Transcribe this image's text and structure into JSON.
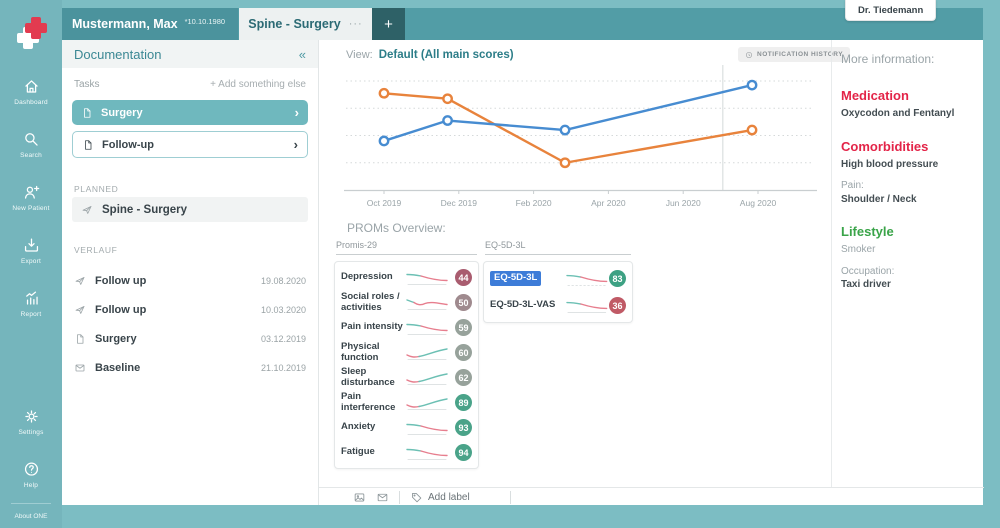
{
  "app": {
    "doctor_badge": "Dr. Tiedemann",
    "about_label": "About ONE"
  },
  "glyphs": {
    "chevron_right": "›",
    "collapse": "«",
    "dots": "···",
    "plus": "+"
  },
  "sidebar": {
    "items": [
      {
        "label": "Dashboard",
        "icon": "home"
      },
      {
        "label": "Search",
        "icon": "search"
      },
      {
        "label": "New Patient",
        "icon": "person-plus"
      },
      {
        "label": "Export",
        "icon": "export"
      },
      {
        "label": "Report",
        "icon": "report"
      }
    ],
    "bottom_items": [
      {
        "label": "Settings",
        "icon": "gear"
      },
      {
        "label": "Help",
        "icon": "help"
      }
    ]
  },
  "header": {
    "patient_name": "Mustermann, Max",
    "patient_dob": "*10.10.1980",
    "active_tab": "Spine - Surgery"
  },
  "documentation": {
    "title": "Documentation",
    "tasks_label": "Tasks",
    "add_task_label": "+ Add something else",
    "task_buttons": [
      {
        "label": "Surgery",
        "icon": "document",
        "active": true
      },
      {
        "label": "Follow-up",
        "icon": "document",
        "active": false
      }
    ],
    "planned_section_label": "PLANNED",
    "planned_items": [
      {
        "label": "Spine - Surgery",
        "icon": "send"
      }
    ],
    "history_section_label": "VERLAUF",
    "history_items": [
      {
        "label": "Follow up",
        "date": "19.08.2020",
        "icon": "send"
      },
      {
        "label": "Follow up",
        "date": "10.03.2020",
        "icon": "send"
      },
      {
        "label": "Surgery",
        "date": "03.12.2019",
        "icon": "document"
      },
      {
        "label": "Baseline",
        "date": "21.10.2019",
        "icon": "mail"
      }
    ]
  },
  "main": {
    "view_label": "View:",
    "view_value": "Default (All main scores)",
    "notification_button": "NOTIFICATION HISTORY",
    "proms_title": "PROMs Overview:",
    "toolbar_add_label": "Add label"
  },
  "chart_data": {
    "type": "line",
    "title": "",
    "xlabel": "",
    "ylabel": "",
    "x_ticks": [
      "Oct 2019",
      "Dec 2019",
      "Feb 2020",
      "Apr 2020",
      "Jun 2020",
      "Aug 2020"
    ],
    "x_tick_months": [
      0,
      2,
      4,
      6,
      8,
      10
    ],
    "series": [
      {
        "name": "orange",
        "color": "#e8833c",
        "x_months": [
          0,
          1.7,
          4.84,
          9.84
        ],
        "values": [
          71,
          67,
          20,
          44
        ]
      },
      {
        "name": "blue",
        "color": "#478cd1",
        "x_months": [
          0,
          1.7,
          4.84,
          9.84
        ],
        "values": [
          36,
          51,
          44,
          77
        ]
      }
    ],
    "gridlines": [
      20,
      40,
      60,
      80
    ],
    "ylim": [
      0,
      100
    ],
    "cursor_x_months": 9.06,
    "grid": "dotted horizontal",
    "legend": "none"
  },
  "proms_groups": [
    {
      "name": "Promis-29",
      "rows": [
        {
          "label": "Depression",
          "score": "44",
          "color": "#a95c6f",
          "trend": "down",
          "selected": false
        },
        {
          "label": "Social roles / activities",
          "score": "50",
          "color": "#9f8a8e",
          "trend": "dip",
          "selected": false
        },
        {
          "label": "Pain intensity",
          "score": "59",
          "color": "#97a29b",
          "trend": "down",
          "selected": false
        },
        {
          "label": "Physical function",
          "score": "60",
          "color": "#97a29b",
          "trend": "up",
          "selected": false
        },
        {
          "label": "Sleep disturbance",
          "score": "62",
          "color": "#97a29b",
          "trend": "up",
          "selected": false
        },
        {
          "label": "Pain interference",
          "score": "89",
          "color": "#4aa389",
          "trend": "up",
          "selected": false
        },
        {
          "label": "Anxiety",
          "score": "93",
          "color": "#4aa389",
          "trend": "down",
          "selected": false
        },
        {
          "label": "Fatigue",
          "score": "94",
          "color": "#4aa389",
          "trend": "down",
          "selected": false
        }
      ]
    },
    {
      "name": "EQ-5D-3L",
      "rows": [
        {
          "label": "EQ-5D-3L",
          "score": "83",
          "color": "#3da183",
          "trend": "down",
          "selected": true
        },
        {
          "label": "EQ-5D-3L-VAS",
          "score": "36",
          "color": "#c05a66",
          "trend": "down",
          "selected": false
        }
      ]
    }
  ],
  "more_info": {
    "title": "More information:",
    "sections": [
      {
        "heading": "Medication",
        "color": "#e32448",
        "lines": [
          {
            "text": "Oxycodon and Fentanyl",
            "style": "bold",
            "gap": false
          }
        ]
      },
      {
        "heading": "Comorbidities",
        "color": "#e32448",
        "lines": [
          {
            "text": "High blood pressure",
            "style": "bold",
            "gap": false
          },
          {
            "text": "Pain:",
            "style": "muted",
            "gap": true
          },
          {
            "text": "Shoulder / Neck",
            "style": "bold",
            "gap": false
          }
        ]
      },
      {
        "heading": "Lifestyle",
        "color": "#3aa449",
        "lines": [
          {
            "text": "Smoker",
            "style": "muted",
            "gap": false
          },
          {
            "text": "Occupation:",
            "style": "muted",
            "gap": true
          },
          {
            "text": "Taxi driver",
            "style": "bold",
            "gap": false
          }
        ]
      }
    ]
  }
}
